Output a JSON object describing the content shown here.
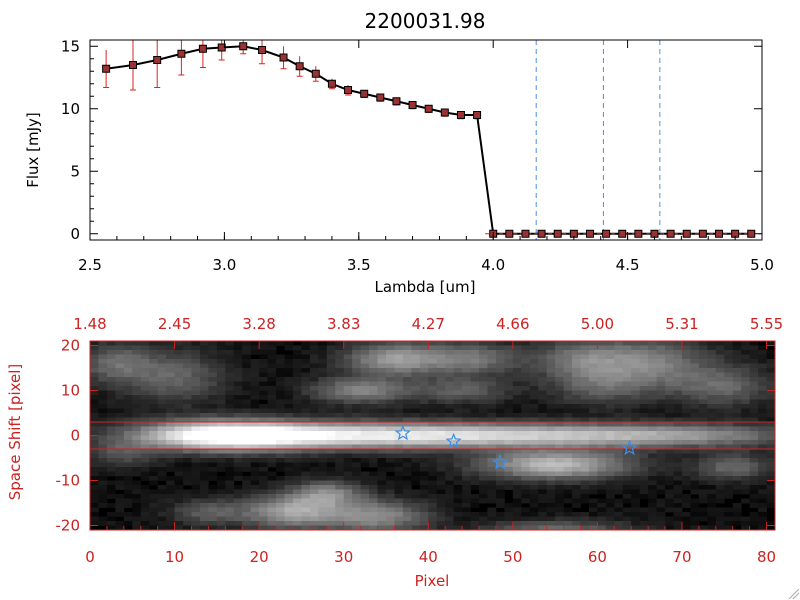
{
  "chart_data": [
    {
      "type": "line",
      "title": "2200031.98",
      "xlabel": "Lambda [um]",
      "ylabel": "Flux [mJy]",
      "xlim": [
        2.5,
        5.0
      ],
      "ylim": [
        -0.5,
        15.5
      ],
      "x_ticks": [
        "2.5",
        "3.0",
        "3.5",
        "4.0",
        "4.5",
        "5.0"
      ],
      "y_ticks": [
        "0",
        "5",
        "10",
        "15"
      ],
      "series": [
        {
          "name": "flux",
          "color": "#000000",
          "marker_color": "#993333",
          "errorbar_color": "#dd2222",
          "x": [
            2.56,
            2.66,
            2.75,
            2.84,
            2.92,
            2.99,
            3.07,
            3.14,
            3.22,
            3.28,
            3.34,
            3.4,
            3.46,
            3.52,
            3.58,
            3.64,
            3.7,
            3.76,
            3.82,
            3.88,
            3.94,
            4.0,
            4.06,
            4.12,
            4.18,
            4.24,
            4.3,
            4.36,
            4.42,
            4.48,
            4.54,
            4.6,
            4.66,
            4.72,
            4.78,
            4.84,
            4.9,
            4.96
          ],
          "y": [
            13.2,
            13.5,
            13.9,
            14.4,
            14.8,
            14.9,
            15.0,
            14.7,
            14.1,
            13.4,
            12.8,
            12.0,
            11.5,
            11.2,
            10.9,
            10.6,
            10.3,
            10.0,
            9.7,
            9.5,
            9.5,
            0,
            0,
            0,
            0,
            0,
            0,
            0,
            0,
            0,
            0,
            0,
            0,
            0,
            0,
            0,
            0,
            0
          ],
          "err": [
            1.5,
            2.0,
            2.2,
            1.7,
            1.5,
            1.0,
            0.6,
            1.1,
            0.9,
            0.8,
            0.6,
            0.4,
            0.4,
            0.3,
            0.3,
            0.3,
            0.3,
            0.3,
            0.3,
            0.3,
            0.3,
            0,
            0,
            0,
            0,
            0,
            0,
            0,
            0,
            0,
            0,
            0,
            0,
            0,
            0,
            0,
            0,
            0
          ]
        }
      ],
      "vertical_lines": {
        "color": "#4d90e0",
        "x": [
          4.16,
          4.41,
          4.62
        ]
      },
      "zero_line_color": "#dd2222"
    },
    {
      "type": "heatmap",
      "xlabel": "Pixel",
      "ylabel": "Space Shift [pixel]",
      "xlim": [
        0,
        81
      ],
      "ylim": [
        -21,
        21
      ],
      "x_ticks": [
        "0",
        "10",
        "20",
        "30",
        "40",
        "50",
        "60",
        "70",
        "80"
      ],
      "y_ticks": [
        "-20",
        "-10",
        "0",
        "10",
        "20"
      ],
      "top_axis_ticks": [
        "1.48",
        "2.45",
        "3.28",
        "3.83",
        "4.27",
        "4.66",
        "5.00",
        "5.31",
        "5.55"
      ],
      "axis_color": "#cc2222",
      "aperture_lines": {
        "color": "#cc2222",
        "y": [
          3,
          -3
        ]
      },
      "stars": {
        "color": "#3a8ee6",
        "x": [
          37.0,
          43.0,
          48.5,
          63.8
        ],
        "y": [
          0.5,
          -1.3,
          -6.0,
          -2.8
        ]
      },
      "blobs": [
        {
          "x": 16,
          "y": 0,
          "sx": 7,
          "sy": 2.2,
          "v": 1.0
        },
        {
          "x": 32,
          "y": 0,
          "sx": 12,
          "sy": 2.0,
          "v": 0.72
        },
        {
          "x": 52,
          "y": 0,
          "sx": 12,
          "sy": 1.8,
          "v": 0.5
        },
        {
          "x": 70,
          "y": 0,
          "sx": 10,
          "sy": 1.8,
          "v": 0.38
        },
        {
          "x": 55,
          "y": -6.5,
          "sx": 6,
          "sy": 2.2,
          "v": 0.65
        },
        {
          "x": 36,
          "y": 17,
          "sx": 4,
          "sy": 2.5,
          "v": 0.5
        },
        {
          "x": 45,
          "y": 17,
          "sx": 4,
          "sy": 2.5,
          "v": 0.35
        },
        {
          "x": 32,
          "y": 10,
          "sx": 4,
          "sy": 2.0,
          "v": 0.4
        },
        {
          "x": 44,
          "y": 10,
          "sx": 4,
          "sy": 2.0,
          "v": 0.25
        },
        {
          "x": 3,
          "y": 16,
          "sx": 3,
          "sy": 3,
          "v": 0.3
        },
        {
          "x": 10,
          "y": 13,
          "sx": 4,
          "sy": 4,
          "v": 0.28
        },
        {
          "x": 58,
          "y": 17,
          "sx": 4,
          "sy": 3,
          "v": 0.3
        },
        {
          "x": 66,
          "y": 16,
          "sx": 5,
          "sy": 4,
          "v": 0.38
        },
        {
          "x": 60,
          "y": 11,
          "sx": 4,
          "sy": 3,
          "v": 0.22
        },
        {
          "x": 75,
          "y": 11,
          "sx": 4,
          "sy": 3,
          "v": 0.28
        },
        {
          "x": 76,
          "y": -7,
          "sx": 3,
          "sy": 2,
          "v": 0.3
        },
        {
          "x": 28,
          "y": -13,
          "sx": 3,
          "sy": 2,
          "v": 0.4
        },
        {
          "x": 24,
          "y": -17,
          "sx": 4,
          "sy": 2.5,
          "v": 0.55
        },
        {
          "x": 34,
          "y": -18,
          "sx": 4,
          "sy": 2.5,
          "v": 0.45
        },
        {
          "x": 14,
          "y": -17,
          "sx": 3,
          "sy": 2,
          "v": 0.25
        },
        {
          "x": 55,
          "y": -21,
          "sx": 6,
          "sy": 1.5,
          "v": 0.3
        },
        {
          "x": 4,
          "y": -4,
          "sx": 3,
          "sy": 2,
          "v": 0.2
        }
      ]
    }
  ]
}
